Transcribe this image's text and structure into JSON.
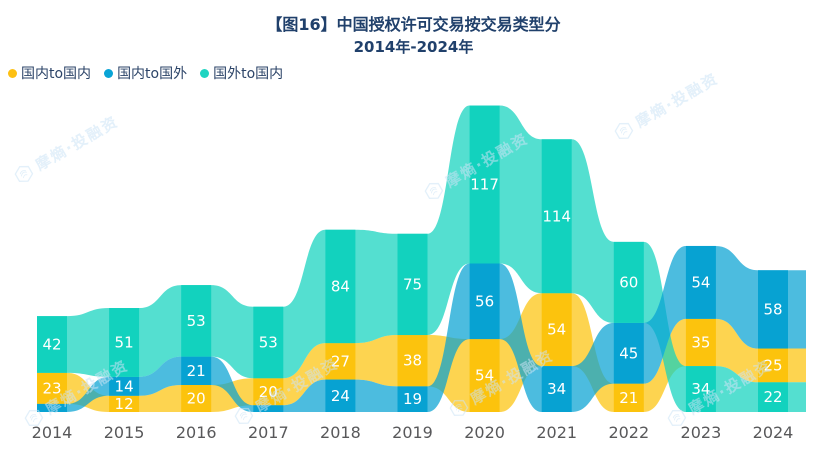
{
  "header": {
    "title": "【图16】中国授权许可交易按交易类型分",
    "subtitle": "2014年-2024年",
    "title_color": "#20406b"
  },
  "legend": {
    "position": "top-left",
    "items": [
      {
        "label": "国内to国内",
        "color": "#fdc013"
      },
      {
        "label": "国内to国外",
        "color": "#09a4d6"
      },
      {
        "label": "国外to国内",
        "color": "#1fd4c1"
      }
    ]
  },
  "watermark": {
    "text": "摩熵·投融资",
    "color": "#cde4f6"
  },
  "chart_data": {
    "type": "area",
    "variant": "ranked-stream",
    "title": "【图16】中国授权许可交易按交易类型分",
    "subtitle": "2014年-2024年",
    "xlabel": "",
    "ylabel": "",
    "grid": false,
    "legend_position": "top-left",
    "axis_label_color": "#58585a",
    "value_label_color": "#ffffff",
    "categories": [
      "2014",
      "2015",
      "2016",
      "2017",
      "2018",
      "2019",
      "2020",
      "2021",
      "2022",
      "2023",
      "2024"
    ],
    "series": [
      {
        "name": "国内to国内",
        "color": "#fcc30d",
        "values": [
          23,
          12,
          20,
          20,
          27,
          38,
          54,
          54,
          21,
          35,
          25
        ],
        "labels": [
          "23",
          "12",
          "20",
          "20",
          "27",
          "38",
          "54",
          "54",
          "21",
          "35",
          "25"
        ]
      },
      {
        "name": "国内to国外",
        "color": "#07a2d2",
        "values": [
          6,
          14,
          21,
          5,
          24,
          19,
          56,
          34,
          45,
          54,
          58
        ],
        "labels": [
          null,
          "14",
          "21",
          null,
          "24",
          "19",
          "56",
          "34",
          "45",
          "54",
          "58"
        ]
      },
      {
        "name": "国外to国内",
        "color": "#12d2be",
        "values": [
          42,
          51,
          53,
          53,
          84,
          75,
          117,
          114,
          60,
          34,
          22
        ],
        "labels": [
          "42",
          "51",
          "53",
          "53",
          "84",
          "75",
          "117",
          "114",
          "60",
          "34",
          "22"
        ]
      }
    ],
    "estimated_values": [
      {
        "series": "国内to国外",
        "year": "2014",
        "value": 6
      },
      {
        "series": "国内to国外",
        "year": "2017",
        "value": 5
      }
    ]
  }
}
